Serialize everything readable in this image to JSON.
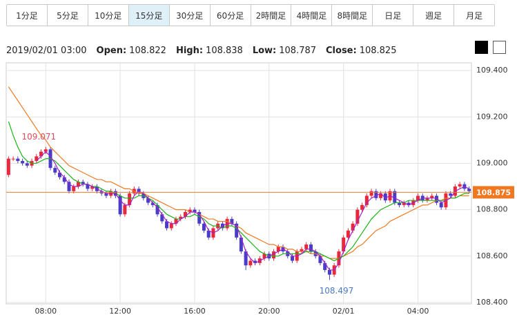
{
  "tabs": [
    "1分足",
    "5分足",
    "10分足",
    "15分足",
    "30分足",
    "60分足",
    "2時間足",
    "4時間足",
    "8時間足",
    "日足",
    "週足",
    "月足"
  ],
  "selected_tab": 3,
  "info": {
    "time": "2019/02/01 03:00",
    "fields": [
      {
        "label": "Open:",
        "value": 108.822
      },
      {
        "label": "High:",
        "value": 108.838
      },
      {
        "label": "Low:",
        "value": 108.787
      },
      {
        "label": "Close:",
        "value": 108.825
      }
    ]
  },
  "chart_data": {
    "type": "candlestick",
    "categories": [
      null,
      null,
      null,
      null,
      null,
      null,
      null,
      null,
      "08:00",
      null,
      null,
      null,
      null,
      null,
      null,
      null,
      null,
      null,
      null,
      null,
      null,
      null,
      null,
      null,
      "12:00",
      null,
      null,
      null,
      null,
      null,
      null,
      null,
      null,
      null,
      null,
      null,
      null,
      null,
      null,
      null,
      "16:00",
      null,
      null,
      null,
      null,
      null,
      null,
      null,
      null,
      null,
      null,
      null,
      null,
      null,
      null,
      null,
      "20:00",
      null,
      null,
      null,
      null,
      null,
      null,
      null,
      null,
      null,
      null,
      null,
      null,
      null,
      null,
      null,
      "02/01",
      null,
      null,
      null,
      null,
      null,
      null,
      null,
      null,
      null,
      null,
      null,
      null,
      null,
      null,
      null,
      "04:00",
      null,
      null,
      null,
      null,
      null,
      null,
      null,
      null,
      null,
      null,
      null
    ],
    "open": [
      108.95,
      109.02,
      109.02,
      109.01,
      109.0,
      108.99,
      109.01,
      109.03,
      109.05,
      109.06,
      108.98,
      108.96,
      108.94,
      108.92,
      108.88,
      108.9,
      108.92,
      108.91,
      108.89,
      108.9,
      108.88,
      108.87,
      108.86,
      108.88,
      108.86,
      108.78,
      108.82,
      108.87,
      108.89,
      108.87,
      108.85,
      108.83,
      108.82,
      108.78,
      108.75,
      108.72,
      108.74,
      108.76,
      108.77,
      108.79,
      108.8,
      108.79,
      108.74,
      108.71,
      108.68,
      108.72,
      108.74,
      108.72,
      108.76,
      108.74,
      108.68,
      108.62,
      108.56,
      108.58,
      108.57,
      108.59,
      108.61,
      108.59,
      108.62,
      108.64,
      108.62,
      108.6,
      108.58,
      108.62,
      108.63,
      108.65,
      108.62,
      108.6,
      108.57,
      108.54,
      108.52,
      108.56,
      108.62,
      108.68,
      108.71,
      108.74,
      108.8,
      108.82,
      108.86,
      108.88,
      108.85,
      108.87,
      108.84,
      108.88,
      108.83,
      108.82,
      108.83,
      108.82,
      108.84,
      108.86,
      108.84,
      108.85,
      108.86,
      108.83,
      108.81,
      108.87,
      108.86,
      108.9,
      108.91,
      108.89
    ],
    "high": [
      109.03,
      109.03,
      109.03,
      109.02,
      109.01,
      109.02,
      109.04,
      109.06,
      109.071,
      109.07,
      108.99,
      108.97,
      108.95,
      108.93,
      108.91,
      108.93,
      108.93,
      108.92,
      108.91,
      108.91,
      108.89,
      108.88,
      108.89,
      108.89,
      108.87,
      108.83,
      108.88,
      108.9,
      108.9,
      108.88,
      108.86,
      108.84,
      108.83,
      108.79,
      108.76,
      108.75,
      108.77,
      108.78,
      108.8,
      108.81,
      108.81,
      108.8,
      108.75,
      108.72,
      108.73,
      108.75,
      108.75,
      108.77,
      108.77,
      108.75,
      108.69,
      108.63,
      108.59,
      108.59,
      108.6,
      108.62,
      108.62,
      108.63,
      108.65,
      108.65,
      108.63,
      108.61,
      108.63,
      108.64,
      108.66,
      108.66,
      108.63,
      108.61,
      108.58,
      108.55,
      108.57,
      108.63,
      108.69,
      108.72,
      108.75,
      108.81,
      108.83,
      108.87,
      108.89,
      108.89,
      108.88,
      108.88,
      108.89,
      108.89,
      108.84,
      108.84,
      108.84,
      108.85,
      108.87,
      108.87,
      108.86,
      108.87,
      108.87,
      108.84,
      108.88,
      108.88,
      108.91,
      108.92,
      108.92,
      108.9
    ],
    "low": [
      108.94,
      109.01,
      109.0,
      108.99,
      108.98,
      108.98,
      109.0,
      109.02,
      109.04,
      108.97,
      108.95,
      108.93,
      108.91,
      108.87,
      108.87,
      108.89,
      108.9,
      108.88,
      108.88,
      108.87,
      108.86,
      108.85,
      108.85,
      108.85,
      108.77,
      108.77,
      108.81,
      108.86,
      108.86,
      108.84,
      108.82,
      108.81,
      108.77,
      108.74,
      108.71,
      108.71,
      108.73,
      108.75,
      108.76,
      108.78,
      108.78,
      108.73,
      108.7,
      108.67,
      108.67,
      108.71,
      108.71,
      108.71,
      108.73,
      108.67,
      108.61,
      108.54,
      108.55,
      108.56,
      108.56,
      108.58,
      108.58,
      108.58,
      108.61,
      108.61,
      108.59,
      108.57,
      108.57,
      108.61,
      108.62,
      108.61,
      108.59,
      108.56,
      108.53,
      108.497,
      108.51,
      108.55,
      108.61,
      108.67,
      108.7,
      108.73,
      108.79,
      108.81,
      108.85,
      108.84,
      108.84,
      108.83,
      108.83,
      108.82,
      108.81,
      108.81,
      108.81,
      108.81,
      108.83,
      108.83,
      108.83,
      108.84,
      108.82,
      108.8,
      108.8,
      108.85,
      108.85,
      108.89,
      108.88,
      108.87
    ],
    "close": [
      109.02,
      109.02,
      109.01,
      109.0,
      108.99,
      109.01,
      109.03,
      109.05,
      109.06,
      108.98,
      108.96,
      108.94,
      108.92,
      108.88,
      108.9,
      108.92,
      108.91,
      108.89,
      108.9,
      108.88,
      108.87,
      108.86,
      108.88,
      108.86,
      108.78,
      108.82,
      108.87,
      108.89,
      108.87,
      108.85,
      108.83,
      108.82,
      108.78,
      108.75,
      108.72,
      108.74,
      108.76,
      108.77,
      108.79,
      108.8,
      108.79,
      108.74,
      108.71,
      108.68,
      108.72,
      108.74,
      108.72,
      108.76,
      108.74,
      108.68,
      108.62,
      108.56,
      108.58,
      108.57,
      108.59,
      108.61,
      108.59,
      108.62,
      108.64,
      108.62,
      108.6,
      108.58,
      108.62,
      108.63,
      108.65,
      108.62,
      108.6,
      108.57,
      108.54,
      108.52,
      108.56,
      108.62,
      108.68,
      108.71,
      108.74,
      108.8,
      108.82,
      108.86,
      108.88,
      108.85,
      108.87,
      108.84,
      108.88,
      108.83,
      108.82,
      108.83,
      108.82,
      108.84,
      108.86,
      108.84,
      108.85,
      108.86,
      108.83,
      108.81,
      108.87,
      108.86,
      108.9,
      108.91,
      108.89,
      108.88
    ],
    "up_color": "#e8283c",
    "down_color": "#4a3cc8",
    "lines": [
      {
        "color": "#f07820",
        "values": [
          109.33,
          109.3,
          109.27,
          109.24,
          109.21,
          109.18,
          109.15,
          109.12,
          109.1,
          109.07,
          109.05,
          109.03,
          109.01,
          108.99,
          108.98,
          108.97,
          108.96,
          108.95,
          108.94,
          108.93,
          108.93,
          108.92,
          108.92,
          108.91,
          108.9,
          108.89,
          108.89,
          108.88,
          108.87,
          108.87,
          108.86,
          108.85,
          108.84,
          108.83,
          108.82,
          108.81,
          108.8,
          108.8,
          108.8,
          108.79,
          108.79,
          108.78,
          108.77,
          108.76,
          108.76,
          108.75,
          108.75,
          108.75,
          108.74,
          108.73,
          108.72,
          108.7,
          108.69,
          108.68,
          108.67,
          108.66,
          108.65,
          108.65,
          108.64,
          108.64,
          108.63,
          108.63,
          108.62,
          108.62,
          108.62,
          108.61,
          108.61,
          108.6,
          108.6,
          108.59,
          108.59,
          108.59,
          108.6,
          108.61,
          108.62,
          108.64,
          108.65,
          108.67,
          108.69,
          108.71,
          108.72,
          108.73,
          108.75,
          108.76,
          108.77,
          108.78,
          108.79,
          108.8,
          108.81,
          108.82,
          108.82,
          108.83,
          108.84,
          108.84,
          108.85,
          108.85,
          108.85,
          108.86,
          108.86,
          108.86
        ]
      },
      {
        "color": "#19b419",
        "values": [
          109.18,
          109.12,
          109.07,
          109.03,
          109.01,
          109.0,
          109.0,
          109.01,
          109.02,
          109.02,
          109.01,
          108.99,
          108.97,
          108.95,
          108.93,
          108.92,
          108.91,
          108.91,
          108.9,
          108.9,
          108.89,
          108.88,
          108.88,
          108.87,
          108.86,
          108.85,
          108.85,
          108.85,
          108.86,
          108.86,
          108.85,
          108.84,
          108.82,
          108.8,
          108.78,
          108.77,
          108.76,
          108.76,
          108.77,
          108.77,
          108.78,
          108.77,
          108.76,
          108.74,
          108.73,
          108.73,
          108.72,
          108.73,
          108.73,
          108.72,
          108.7,
          108.68,
          108.66,
          108.64,
          108.62,
          108.61,
          108.6,
          108.6,
          108.6,
          108.61,
          108.61,
          108.61,
          108.61,
          108.61,
          108.62,
          108.62,
          108.62,
          108.61,
          108.6,
          108.59,
          108.58,
          108.59,
          108.6,
          108.62,
          108.64,
          108.67,
          108.7,
          108.73,
          108.76,
          108.78,
          108.8,
          108.81,
          108.82,
          108.83,
          108.83,
          108.83,
          108.84,
          108.84,
          108.84,
          108.84,
          108.84,
          108.84,
          108.84,
          108.84,
          108.84,
          108.85,
          108.85,
          108.86,
          108.87,
          108.87
        ]
      },
      {
        "color": "#a020c8",
        "values": [
          null,
          null,
          null,
          null,
          null,
          null,
          109.01,
          109.03,
          109.05,
          109.03,
          109.0,
          108.96,
          108.94,
          108.91,
          108.9,
          108.9,
          108.91,
          108.91,
          108.9,
          108.89,
          108.88,
          108.87,
          108.87,
          108.87,
          108.84,
          108.82,
          108.82,
          108.86,
          108.88,
          108.87,
          108.85,
          108.83,
          108.81,
          108.78,
          108.75,
          108.74,
          108.74,
          108.76,
          108.77,
          108.79,
          108.79,
          108.78,
          108.75,
          108.71,
          108.7,
          108.71,
          108.73,
          108.74,
          108.74,
          108.73,
          108.68,
          108.62,
          108.59,
          108.57,
          108.58,
          108.59,
          108.6,
          108.61,
          108.62,
          108.63,
          108.62,
          108.6,
          108.6,
          108.61,
          108.63,
          108.63,
          108.62,
          108.6,
          108.57,
          108.54,
          108.54,
          108.57,
          108.62,
          108.67,
          108.71,
          108.75,
          108.79,
          108.83,
          108.85,
          108.86,
          108.87,
          108.85,
          108.86,
          108.85,
          108.84,
          108.83,
          108.82,
          108.83,
          108.84,
          108.85,
          108.85,
          108.85,
          108.85,
          108.83,
          108.84,
          108.85,
          108.88,
          108.89,
          108.9,
          108.89
        ]
      }
    ],
    "last_price": 108.875,
    "last_price_color": "#f07820",
    "ylim": [
      108.394,
      109.433
    ],
    "yticks": [
      {
        "value": 108.4,
        "label": "108.400"
      },
      {
        "value": 108.6,
        "label": "108.600"
      },
      {
        "value": 108.8,
        "label": "108.800"
      },
      {
        "value": 109.0,
        "label": "109.000"
      },
      {
        "value": 109.2,
        "label": "109.200"
      },
      {
        "value": 109.4,
        "label": "109.400"
      }
    ],
    "grid": true
  }
}
